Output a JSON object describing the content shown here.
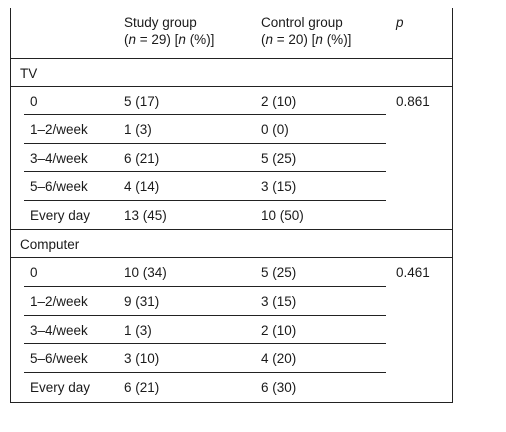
{
  "header": {
    "study_line1": "Study group",
    "study_pre": "(",
    "study_n": "n",
    "study_mid": " = 29) [",
    "study_n2": "n",
    "study_post": " (%)]",
    "control_line1": "Control group",
    "control_pre": "(",
    "control_n": "n",
    "control_mid": " = 20) [",
    "control_n2": "n",
    "control_post": " (%)]",
    "p_label": "p"
  },
  "sections": [
    {
      "title": "TV",
      "p_value": "0.861",
      "rows": [
        {
          "label": "0",
          "study": "5 (17)",
          "control": "2 (10)"
        },
        {
          "label": "1–2/week",
          "study": "1 (3)",
          "control": "0 (0)"
        },
        {
          "label": "3–4/week",
          "study": "6 (21)",
          "control": "5 (25)"
        },
        {
          "label": "5–6/week",
          "study": "4 (14)",
          "control": "3 (15)"
        },
        {
          "label": "Every day",
          "study": "13 (45)",
          "control": "10 (50)"
        }
      ]
    },
    {
      "title": "Computer",
      "p_value": "0.461",
      "rows": [
        {
          "label": "0",
          "study": "10 (34)",
          "control": "5 (25)"
        },
        {
          "label": "1–2/week",
          "study": "9 (31)",
          "control": "3 (15)"
        },
        {
          "label": "3–4/week",
          "study": "1 (3)",
          "control": "2 (10)"
        },
        {
          "label": "5–6/week",
          "study": "3 (10)",
          "control": "4 (20)"
        },
        {
          "label": "Every day",
          "study": "6 (21)",
          "control": "6 (30)"
        }
      ]
    }
  ]
}
